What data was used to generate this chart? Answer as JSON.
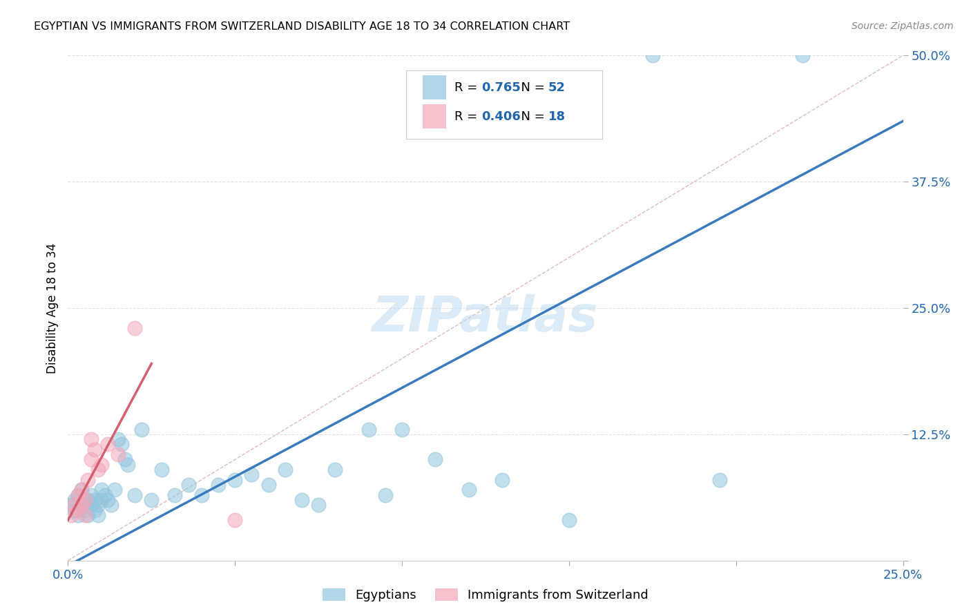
{
  "title": "EGYPTIAN VS IMMIGRANTS FROM SWITZERLAND DISABILITY AGE 18 TO 34 CORRELATION CHART",
  "source": "Source: ZipAtlas.com",
  "ylabel": "Disability Age 18 to 34",
  "xlim": [
    0.0,
    0.25
  ],
  "ylim": [
    0.0,
    0.5
  ],
  "xticks": [
    0.0,
    0.05,
    0.1,
    0.15,
    0.2,
    0.25
  ],
  "yticks": [
    0.0,
    0.125,
    0.25,
    0.375,
    0.5
  ],
  "xtick_labels": [
    "0.0%",
    "",
    "",
    "",
    "",
    "25.0%"
  ],
  "ytick_labels": [
    "",
    "12.5%",
    "25.0%",
    "37.5%",
    "50.0%"
  ],
  "blue_R": 0.765,
  "blue_N": 52,
  "pink_R": 0.406,
  "pink_N": 18,
  "blue_color": "#92c5de",
  "pink_color": "#f4a6b8",
  "blue_line_color": "#3a7abf",
  "pink_line_color": "#d45f6e",
  "diagonal_color": "#d0a0a0",
  "grid_color": "#e0e0e0",
  "watermark": "ZIPatlas",
  "legend_label_blue": "Egyptians",
  "legend_label_pink": "Immigrants from Switzerland",
  "blue_line_x0": 0.0,
  "blue_line_y0": -0.005,
  "blue_line_x1": 0.25,
  "blue_line_y1": 0.435,
  "pink_line_x0": 0.0,
  "pink_line_y0": 0.04,
  "pink_line_x1": 0.025,
  "pink_line_y1": 0.195,
  "blue_scatter_x": [
    0.001,
    0.002,
    0.002,
    0.003,
    0.003,
    0.004,
    0.004,
    0.005,
    0.005,
    0.006,
    0.006,
    0.007,
    0.007,
    0.008,
    0.008,
    0.009,
    0.009,
    0.01,
    0.01,
    0.011,
    0.012,
    0.013,
    0.014,
    0.015,
    0.016,
    0.017,
    0.018,
    0.02,
    0.022,
    0.025,
    0.028,
    0.032,
    0.036,
    0.04,
    0.045,
    0.05,
    0.055,
    0.06,
    0.065,
    0.07,
    0.075,
    0.08,
    0.09,
    0.095,
    0.1,
    0.11,
    0.12,
    0.13,
    0.15,
    0.175,
    0.195,
    0.22
  ],
  "blue_scatter_y": [
    0.055,
    0.05,
    0.06,
    0.045,
    0.065,
    0.055,
    0.07,
    0.05,
    0.06,
    0.045,
    0.06,
    0.055,
    0.065,
    0.05,
    0.06,
    0.045,
    0.055,
    0.06,
    0.07,
    0.065,
    0.06,
    0.055,
    0.07,
    0.12,
    0.115,
    0.1,
    0.095,
    0.065,
    0.13,
    0.06,
    0.09,
    0.065,
    0.075,
    0.065,
    0.075,
    0.08,
    0.085,
    0.075,
    0.09,
    0.06,
    0.055,
    0.09,
    0.13,
    0.065,
    0.13,
    0.1,
    0.07,
    0.08,
    0.04,
    0.5,
    0.08,
    0.5
  ],
  "pink_scatter_x": [
    0.001,
    0.002,
    0.003,
    0.003,
    0.004,
    0.004,
    0.005,
    0.005,
    0.006,
    0.007,
    0.007,
    0.008,
    0.009,
    0.01,
    0.012,
    0.015,
    0.02,
    0.05
  ],
  "pink_scatter_y": [
    0.045,
    0.055,
    0.05,
    0.065,
    0.055,
    0.07,
    0.06,
    0.045,
    0.08,
    0.12,
    0.1,
    0.11,
    0.09,
    0.095,
    0.115,
    0.105,
    0.23,
    0.04
  ]
}
